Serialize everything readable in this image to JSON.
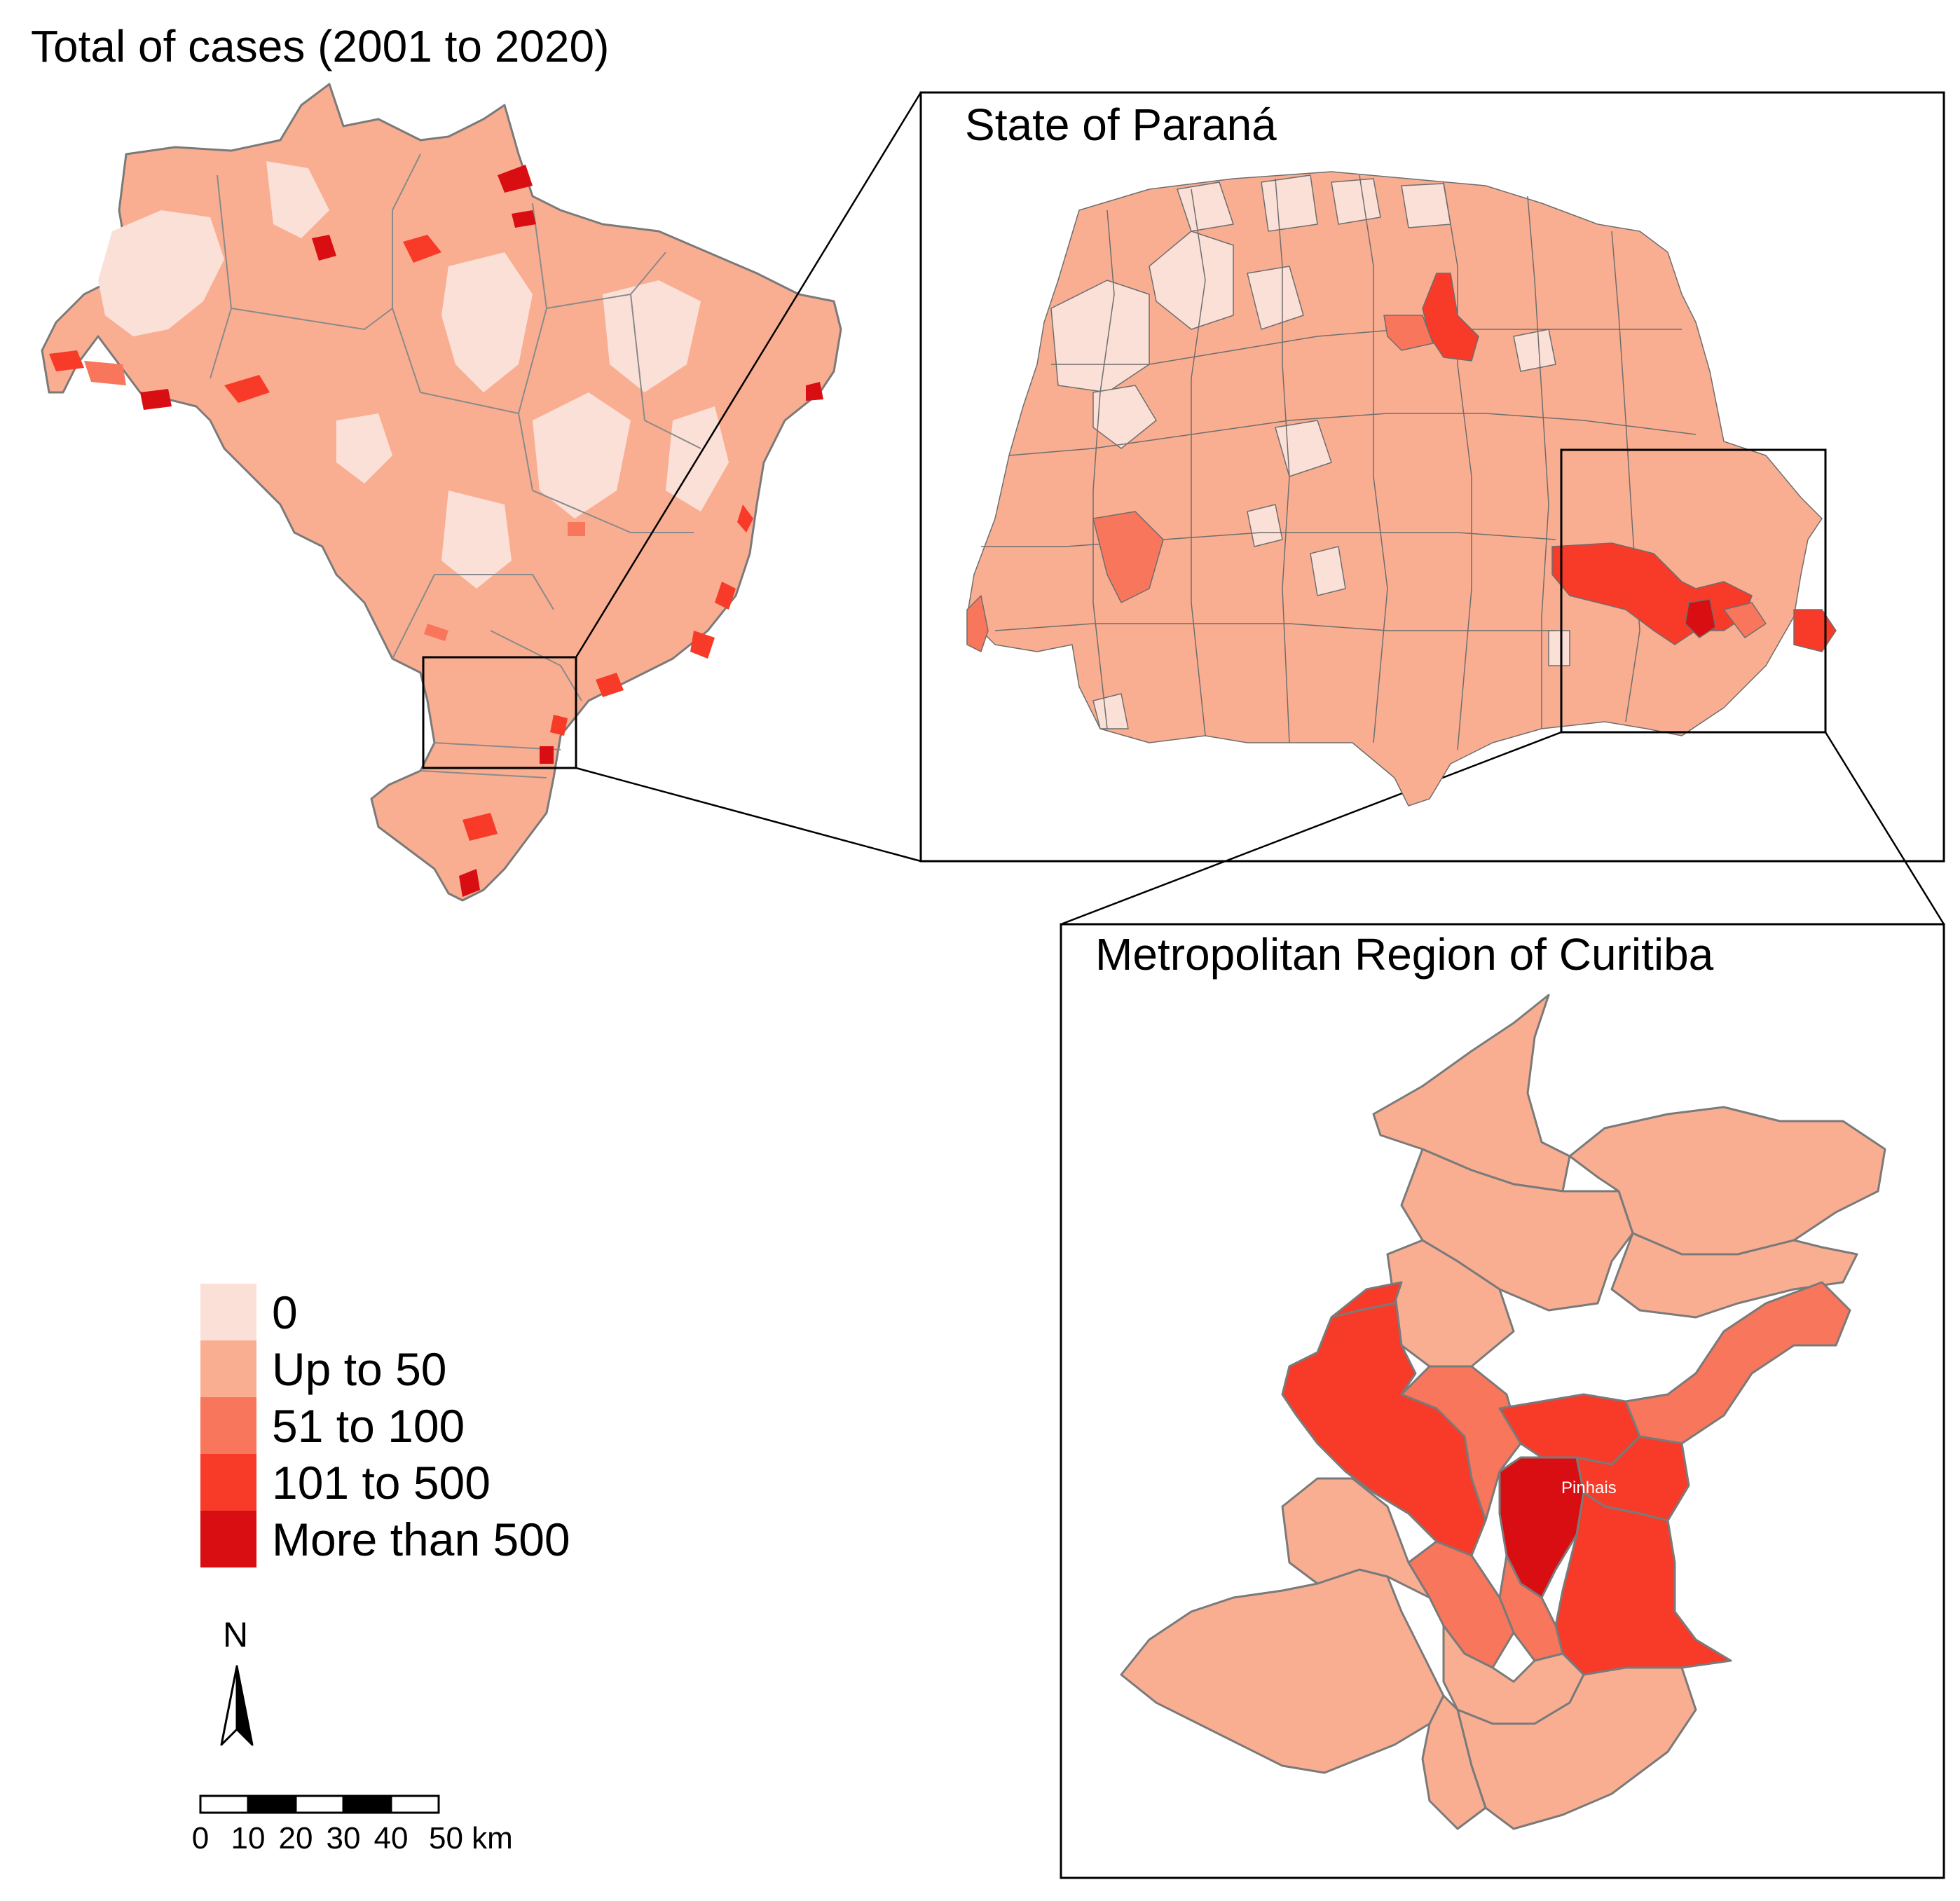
{
  "map": {
    "title": "Total of cases (2001 to 2020)",
    "insets": [
      {
        "title": "State of Paraná"
      },
      {
        "title": "Metropolitan Region of Curitiba"
      }
    ],
    "place_label": "Pinhais",
    "legend": {
      "items": [
        {
          "label": "0",
          "color": "#fbe0d8"
        },
        {
          "label": "Up to 50",
          "color": "#f9ae92"
        },
        {
          "label": "51 to 100",
          "color": "#f8765b"
        },
        {
          "label": "101 to 500",
          "color": "#f83a28"
        },
        {
          "label": "More than 500",
          "color": "#d80e12"
        }
      ]
    },
    "north_arrow": {
      "label": "N",
      "icon": "north-arrow-icon"
    },
    "scale_bar": {
      "ticks": [
        "0",
        "10",
        "20",
        "30",
        "40",
        "50 km"
      ]
    }
  }
}
